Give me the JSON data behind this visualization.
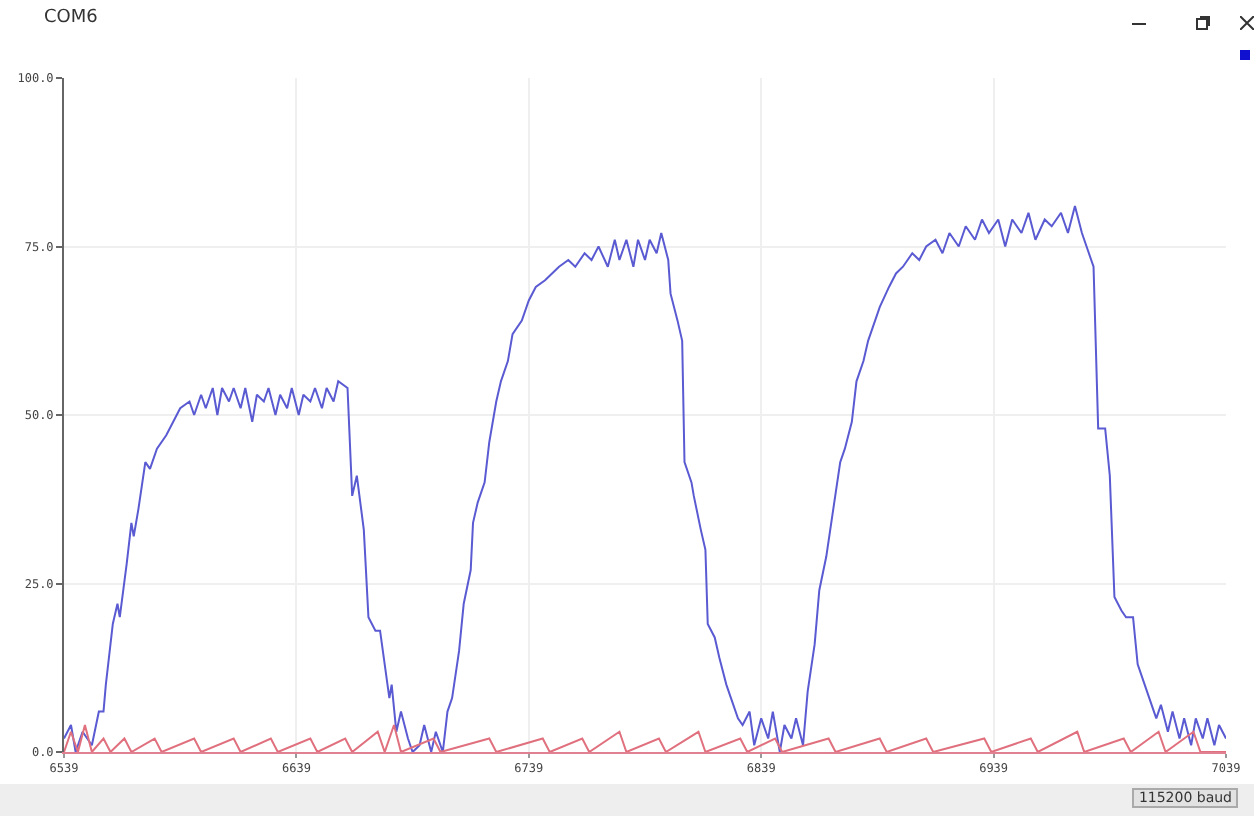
{
  "chart_data": {
    "type": "line",
    "title": "COM6",
    "annotations": [
      "115200 baud"
    ],
    "xlim": [
      6539,
      7039
    ],
    "xticks": [
      6539,
      6639,
      6739,
      6839,
      6939,
      7039
    ],
    "ylim": [
      0,
      100
    ],
    "yticks": [
      {
        "value": 0,
        "label": "0.0"
      },
      {
        "value": 25,
        "label": "25.0"
      },
      {
        "value": 50,
        "label": "50.0"
      },
      {
        "value": 75,
        "label": "75.0"
      },
      {
        "value": 100,
        "label": "100.0"
      }
    ],
    "grid": true,
    "marker": "none",
    "line_style": "solid",
    "series": [
      {
        "color": "#5a5ad2",
        "x": [
          6539,
          6542,
          6544,
          6547,
          6551,
          6554,
          6556,
          6557,
          6560,
          6562,
          6563,
          6566,
          6568,
          6569,
          6571,
          6574,
          6576,
          6579,
          6583,
          6586,
          6589,
          6593,
          6595,
          6598,
          6600,
          6603,
          6605,
          6607,
          6610,
          6612,
          6615,
          6617,
          6620,
          6622,
          6625,
          6627,
          6630,
          6632,
          6635,
          6637,
          6640,
          6642,
          6645,
          6647,
          6650,
          6652,
          6655,
          6657,
          6661,
          6663,
          6665,
          6668,
          6670,
          6673,
          6675,
          6679,
          6680,
          6682,
          6684,
          6687,
          6689,
          6692,
          6694,
          6697,
          6699,
          6702,
          6704,
          6706,
          6709,
          6711,
          6714,
          6715,
          6717,
          6720,
          6722,
          6725,
          6727,
          6730,
          6732,
          6736,
          6739,
          6742,
          6746,
          6749,
          6752,
          6756,
          6759,
          6763,
          6766,
          6769,
          6773,
          6776,
          6778,
          6781,
          6784,
          6786,
          6789,
          6791,
          6794,
          6796,
          6799,
          6800,
          6803,
          6805,
          6806,
          6809,
          6810,
          6813,
          6815,
          6816,
          6819,
          6821,
          6824,
          6826,
          6829,
          6831,
          6834,
          6836,
          6839,
          6842,
          6844,
          6847,
          6849,
          6852,
          6854,
          6857,
          6859,
          6862,
          6864,
          6867,
          6870,
          6873,
          6875,
          6878,
          6880,
          6883,
          6885,
          6888,
          6890,
          6894,
          6897,
          6900,
          6904,
          6907,
          6910,
          6914,
          6917,
          6920,
          6924,
          6927,
          6931,
          6934,
          6937,
          6941,
          6944,
          6947,
          6951,
          6954,
          6957,
          6961,
          6964,
          6968,
          6971,
          6974,
          6977,
          6979,
          6982,
          6984,
          6987,
          6989,
          6991,
          6994,
          6996,
          6999,
          7001,
          7004,
          7006,
          7009,
          7011,
          7014,
          7016,
          7019,
          7021,
          7024,
          7026,
          7029,
          7031,
          7034,
          7036,
          7039
        ],
        "values": [
          2,
          4,
          0,
          3,
          1,
          6,
          6,
          10,
          19,
          22,
          20,
          28,
          34,
          32,
          36,
          43,
          42,
          45,
          47,
          49,
          51,
          52,
          50,
          53,
          51,
          54,
          50,
          54,
          52,
          54,
          51,
          54,
          49,
          53,
          52,
          54,
          50,
          53,
          51,
          54,
          50,
          53,
          52,
          54,
          51,
          54,
          52,
          55,
          54,
          38,
          41,
          33,
          20,
          18,
          18,
          8,
          10,
          3,
          6,
          2,
          0,
          1,
          4,
          0,
          3,
          0,
          6,
          8,
          15,
          22,
          27,
          34,
          37,
          40,
          46,
          52,
          55,
          58,
          62,
          64,
          67,
          69,
          70,
          71,
          72,
          73,
          72,
          74,
          73,
          75,
          72,
          76,
          73,
          76,
          72,
          76,
          73,
          76,
          74,
          77,
          73,
          68,
          64,
          61,
          43,
          40,
          38,
          33,
          30,
          19,
          17,
          14,
          10,
          8,
          5,
          4,
          6,
          1,
          5,
          2,
          6,
          0,
          4,
          2,
          5,
          1,
          9,
          16,
          24,
          29,
          36,
          43,
          45,
          49,
          55,
          58,
          61,
          64,
          66,
          69,
          71,
          72,
          74,
          73,
          75,
          76,
          74,
          77,
          75,
          78,
          76,
          79,
          77,
          79,
          75,
          79,
          77,
          80,
          76,
          79,
          78,
          80,
          77,
          81,
          77,
          75,
          72,
          48,
          48,
          41,
          23,
          21,
          20,
          20,
          13,
          10,
          8,
          5,
          7,
          3,
          6,
          2,
          5,
          1,
          5,
          2,
          5,
          1,
          4,
          2
        ]
      },
      {
        "color": "#e0707e",
        "x": [
          6539,
          6542,
          6545,
          6548,
          6551,
          6556,
          6559,
          6565,
          6568,
          6578,
          6581,
          6595,
          6598,
          6612,
          6615,
          6628,
          6631,
          6645,
          6648,
          6660,
          6663,
          6674,
          6677,
          6681,
          6684,
          6698,
          6701,
          6722,
          6725,
          6745,
          6748,
          6762,
          6765,
          6778,
          6781,
          6795,
          6798,
          6812,
          6815,
          6830,
          6833,
          6845,
          6848,
          6868,
          6871,
          6890,
          6893,
          6910,
          6913,
          6935,
          6938,
          6955,
          6958,
          6975,
          6978,
          6995,
          6998,
          7010,
          7013,
          7025,
          7028,
          7039
        ],
        "values": [
          0,
          3,
          0,
          4,
          0,
          2,
          0,
          2,
          0,
          2,
          0,
          2,
          0,
          2,
          0,
          2,
          0,
          2,
          0,
          2,
          0,
          3,
          0,
          4,
          0,
          2,
          0,
          2,
          0,
          2,
          0,
          2,
          0,
          3,
          0,
          2,
          0,
          3,
          0,
          2,
          0,
          2,
          0,
          2,
          0,
          2,
          0,
          2,
          0,
          2,
          0,
          2,
          0,
          3,
          0,
          2,
          0,
          3,
          0,
          3,
          0,
          0
        ]
      }
    ]
  }
}
